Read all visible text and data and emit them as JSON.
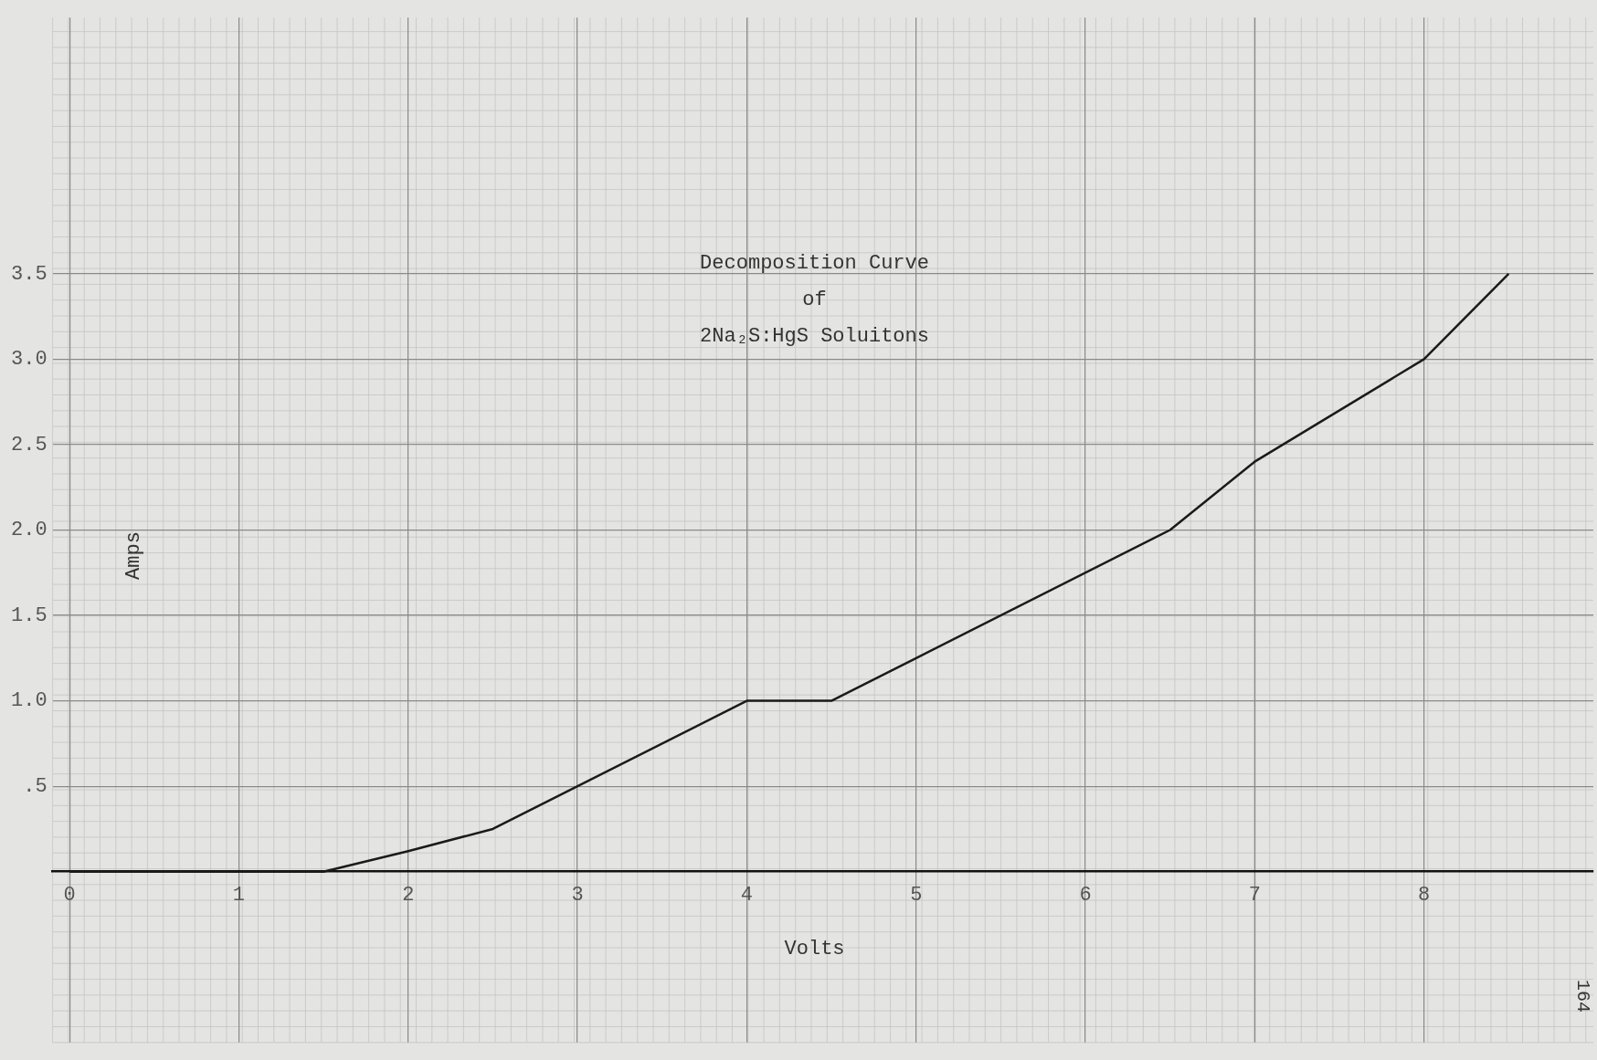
{
  "chart_data": {
    "type": "line",
    "title": "Decomposition Curve\nof\n2Na₂S:HgS Soluitons",
    "xlabel": "Volts",
    "ylabel": "Amps",
    "x": [
      0,
      1,
      1.5,
      2,
      2.5,
      4,
      4.5,
      5,
      6.5,
      7,
      8,
      8.5
    ],
    "series": [
      {
        "color": "#1a1a1a",
        "values": [
          0,
          0,
          0,
          0.12,
          0.25,
          1.0,
          1.0,
          1.25,
          2.0,
          2.4,
          3.0,
          3.5
        ]
      }
    ],
    "xlim": [
      -0.1,
      9
    ],
    "ylim": [
      -1,
      5
    ],
    "xticks": [
      0,
      1,
      2,
      3,
      4,
      5,
      6,
      7,
      8
    ],
    "yticks": [
      {
        "value": 0.5,
        "label": ".5"
      },
      {
        "value": 1,
        "label": "1.0"
      },
      {
        "value": 1.5,
        "label": "1.5"
      },
      {
        "value": 2,
        "label": "2.0"
      },
      {
        "value": 2.5,
        "label": "2.5"
      },
      {
        "value": 3,
        "label": "3.0"
      },
      {
        "value": 3.5,
        "label": "3.5"
      }
    ],
    "grid": true,
    "legend": false,
    "marker": "none",
    "line_style": "solid",
    "annotations": [
      "164"
    ]
  }
}
